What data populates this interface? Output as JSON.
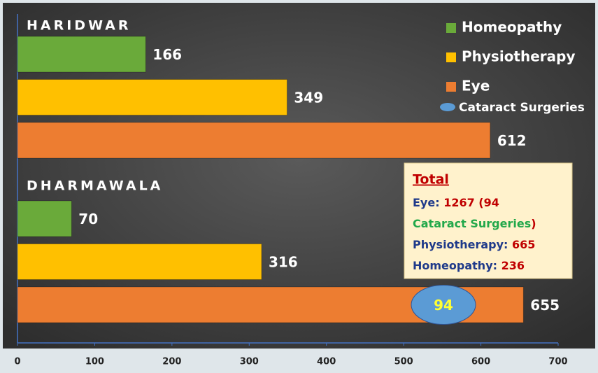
{
  "chart_data": {
    "type": "hbar",
    "categories": [
      "HARIDWAR",
      "DHARMAWALA"
    ],
    "series": [
      {
        "name": "Homeopathy",
        "color": "#6aaa3a",
        "values": [
          166,
          70
        ]
      },
      {
        "name": "Physiotherapy",
        "color": "#ffc000",
        "values": [
          349,
          316
        ]
      },
      {
        "name": "Eye",
        "color": "#ed7d31",
        "values": [
          612,
          655
        ]
      }
    ],
    "cataract": {
      "name": "Cataract Surgeries",
      "color": "#5b9bd5",
      "text_color": "#ffff33",
      "values": [
        null,
        94
      ]
    },
    "xlim": [
      0,
      700
    ],
    "xticks": [
      0,
      100,
      200,
      300,
      400,
      500,
      600,
      700
    ],
    "totals": {
      "title": "Total",
      "lines": [
        [
          {
            "text": "Eye: ",
            "color": "#1f3a8a"
          },
          {
            "text": "1267 (94",
            "color": "#c00000"
          }
        ],
        [
          {
            "text": "Cataract Surgeries",
            "color": "#22a84a"
          },
          {
            "text": ")",
            "color": "#c00000"
          }
        ],
        [
          {
            "text": "Physiotherapy: ",
            "color": "#1f3a8a"
          },
          {
            "text": "665",
            "color": "#c00000"
          }
        ],
        [
          {
            "text": "Homeopathy: ",
            "color": "#1f3a8a"
          },
          {
            "text": "236",
            "color": "#c00000"
          }
        ]
      ]
    }
  }
}
